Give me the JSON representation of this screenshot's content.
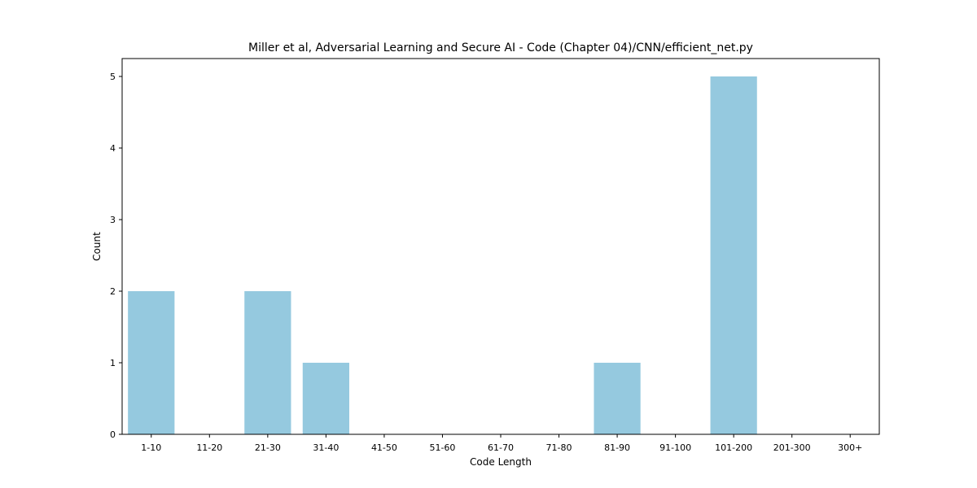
{
  "chart_data": {
    "type": "bar",
    "title": "Miller et al, Adversarial Learning and Secure AI - Code (Chapter 04)/CNN/efficient_net.py",
    "xlabel": "Code Length",
    "ylabel": "Count",
    "categories": [
      "1-10",
      "11-20",
      "21-30",
      "31-40",
      "41-50",
      "51-60",
      "61-70",
      "71-80",
      "81-90",
      "91-100",
      "101-200",
      "201-300",
      "300+"
    ],
    "values": [
      2,
      0,
      2,
      1,
      0,
      0,
      0,
      0,
      1,
      0,
      5,
      0,
      0
    ],
    "ylim": [
      0,
      5.25
    ],
    "yticks": [
      "0",
      "1",
      "2",
      "3",
      "4",
      "5"
    ],
    "bar_color": "#95c9df",
    "grid": false,
    "legend": "none"
  }
}
